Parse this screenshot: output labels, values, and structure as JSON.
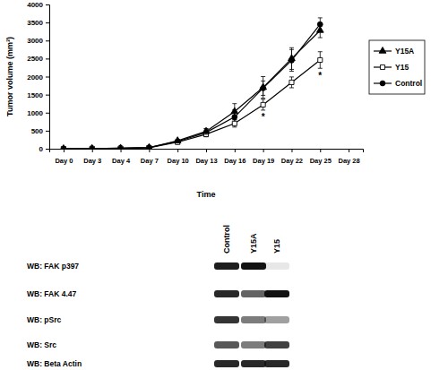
{
  "chart_data": {
    "type": "line",
    "x_label": "Time",
    "y_label": "Tumor volume (mm³)",
    "categories": [
      "Day 0",
      "Day 3",
      "Day 4",
      "Day 7",
      "Day 10",
      "Day 13",
      "Day 16",
      "Day 19",
      "Day 22",
      "Day 25",
      "Day 28"
    ],
    "ylim": [
      0,
      4000
    ],
    "yticks": [
      0,
      500,
      1000,
      1500,
      2000,
      2500,
      3000,
      3500,
      4000
    ],
    "legend": "right",
    "series": [
      {
        "name": "Y15A",
        "color": "#000000",
        "marker": "triangle",
        "values": [
          0,
          5,
          15,
          30,
          220,
          480,
          1030,
          1700,
          2500,
          3280,
          null
        ],
        "errors": [
          0,
          0,
          0,
          0,
          30,
          80,
          220,
          300,
          300,
          200,
          null
        ]
      },
      {
        "name": "Y15",
        "color": "#000000",
        "marker": "square-open",
        "values": [
          0,
          5,
          10,
          25,
          180,
          400,
          700,
          1220,
          1840,
          2460,
          null
        ],
        "errors": [
          0,
          0,
          0,
          0,
          30,
          70,
          100,
          150,
          150,
          230,
          null
        ]
      },
      {
        "name": "Control",
        "color": "#000000",
        "marker": "circle",
        "values": [
          0,
          5,
          15,
          35,
          200,
          450,
          880,
          1680,
          2450,
          3450,
          null
        ],
        "errors": [
          0,
          0,
          0,
          0,
          40,
          100,
          200,
          200,
          300,
          180,
          null
        ]
      }
    ],
    "annotations": [
      {
        "text": "*",
        "category": "Day 19",
        "value": 950
      },
      {
        "text": "*",
        "category": "Day 25",
        "value": 2080
      }
    ]
  },
  "blot": {
    "lanes": [
      "Control",
      "Y15A",
      "Y15"
    ],
    "rows": [
      {
        "label": "WB: FAK p397",
        "intensity": [
          0.95,
          1.0,
          0.1
        ]
      },
      {
        "label": "WB: FAK 4.47",
        "intensity": [
          0.9,
          0.65,
          1.0
        ]
      },
      {
        "label": "WB: pSrc",
        "intensity": [
          0.85,
          0.55,
          0.4
        ]
      },
      {
        "label": "WB: Src",
        "intensity": [
          0.7,
          0.55,
          0.8
        ]
      },
      {
        "label": "WB: Beta Actin",
        "intensity": [
          0.9,
          0.9,
          0.9
        ]
      }
    ]
  }
}
